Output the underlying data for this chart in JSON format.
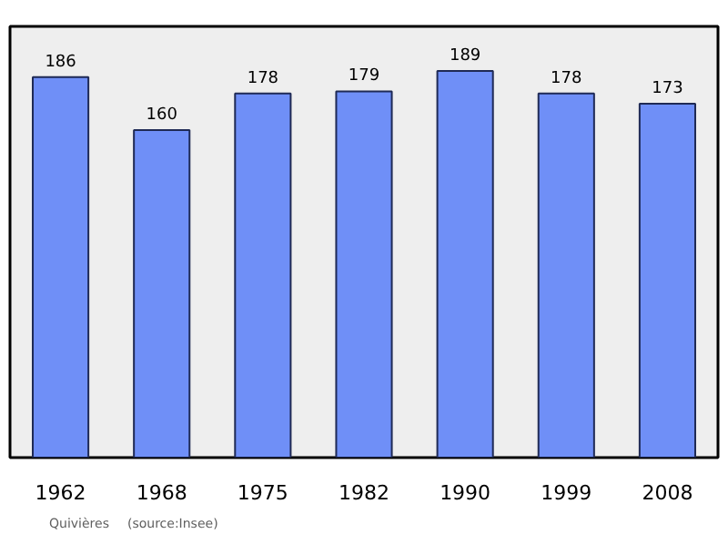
{
  "chart_data": {
    "type": "bar",
    "categories": [
      "1962",
      "1968",
      "1975",
      "1982",
      "1990",
      "1999",
      "2008"
    ],
    "values": [
      186,
      160,
      178,
      179,
      189,
      178,
      173
    ],
    "color": "#6f8ff7",
    "data_labels": true,
    "grid": false,
    "annotations": [
      "Quivières",
      "(source:Insee)"
    ]
  }
}
